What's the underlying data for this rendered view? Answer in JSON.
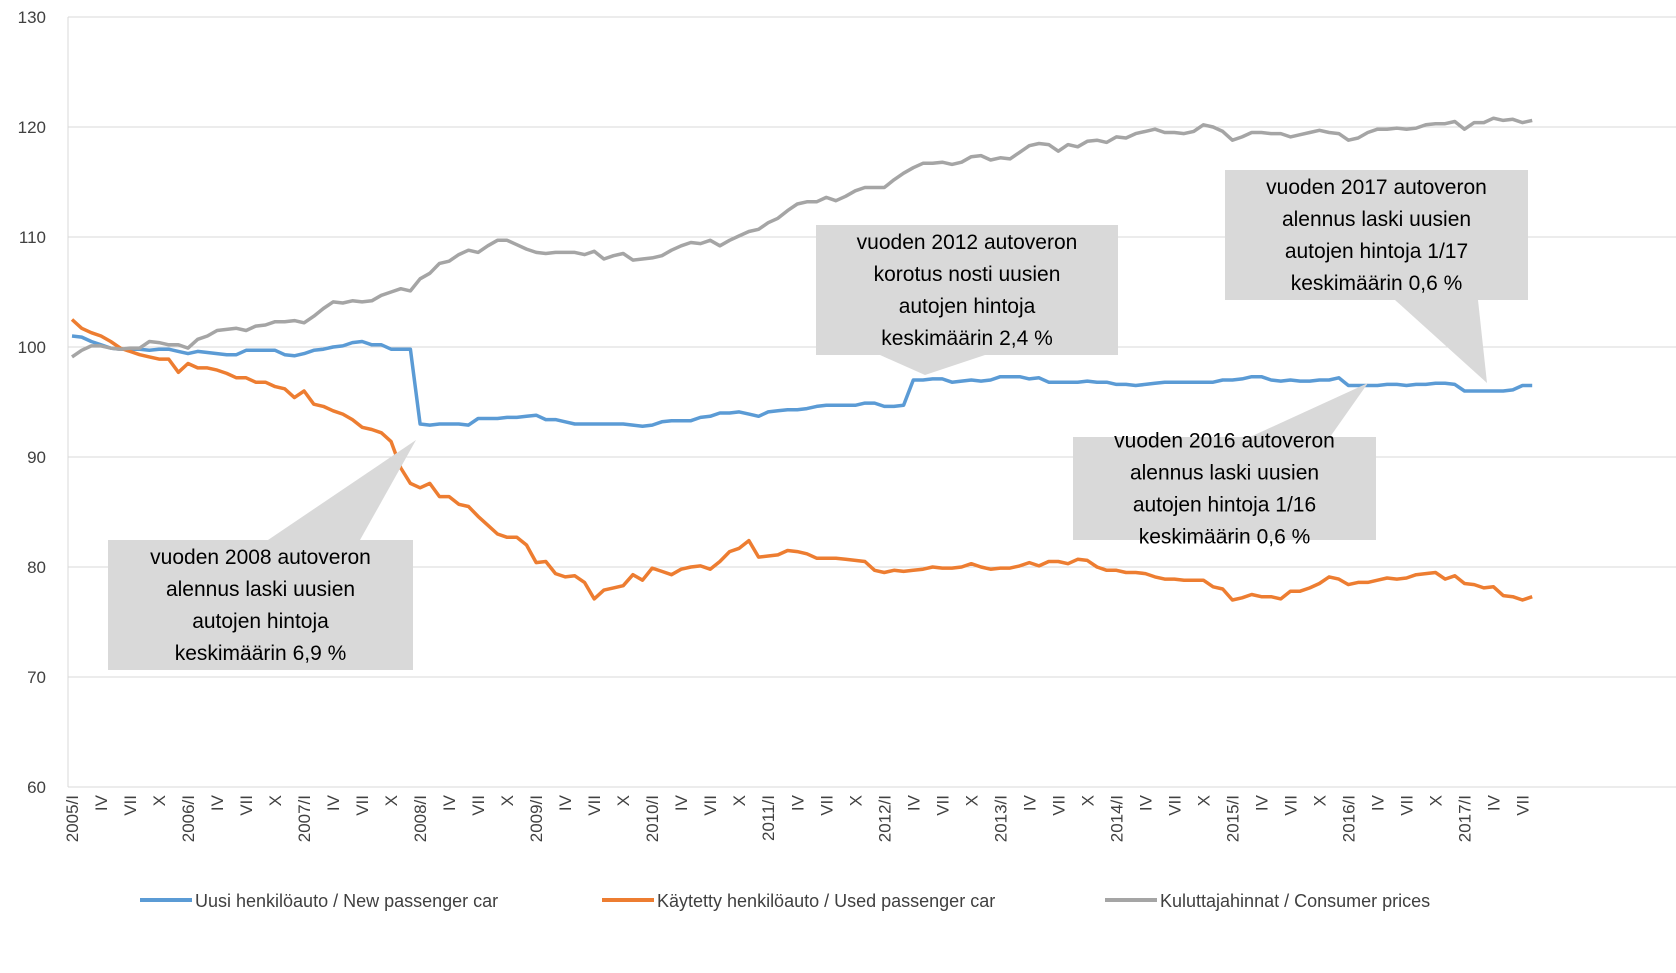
{
  "chart_data": {
    "type": "line",
    "categories": [
      "2005/I",
      null,
      null,
      "IV",
      null,
      null,
      "VII",
      null,
      null,
      "X",
      null,
      null,
      "2006/I",
      null,
      null,
      "IV",
      null,
      null,
      "VII",
      null,
      null,
      "X",
      null,
      null,
      "2007/I",
      null,
      null,
      "IV",
      null,
      null,
      "VII",
      null,
      null,
      "X",
      null,
      null,
      "2008/I",
      null,
      null,
      "IV",
      null,
      null,
      "VII",
      null,
      null,
      "X",
      null,
      null,
      "2009/I",
      null,
      null,
      "IV",
      null,
      null,
      "VII",
      null,
      null,
      "X",
      null,
      null,
      "2010/I",
      null,
      null,
      "IV",
      null,
      null,
      "VII",
      null,
      null,
      "X",
      null,
      null,
      "2011/I",
      null,
      null,
      "IV",
      null,
      null,
      "VII",
      null,
      null,
      "X",
      null,
      null,
      "2012/I",
      null,
      null,
      "IV",
      null,
      null,
      "VII",
      null,
      null,
      "X",
      null,
      null,
      "2013/I",
      null,
      null,
      "IV",
      null,
      null,
      "VII",
      null,
      null,
      "X",
      null,
      null,
      "2014/I",
      null,
      null,
      "IV",
      null,
      null,
      "VII",
      null,
      null,
      "X",
      null,
      null,
      "2015/I",
      null,
      null,
      "IV",
      null,
      null,
      "VII",
      null,
      null,
      "X",
      null,
      null,
      "2016/I",
      null,
      null,
      "IV",
      null,
      null,
      "VII",
      null,
      null,
      "X",
      null,
      null,
      "2017/I",
      null,
      null,
      "IV",
      null,
      null,
      "VII",
      null
    ],
    "series": [
      {
        "name": "Uusi henkilöauto / New passenger car",
        "color": "#5b9bd5",
        "values": [
          101.0,
          100.9,
          100.5,
          100.2,
          99.9,
          99.8,
          99.8,
          99.8,
          99.7,
          99.8,
          99.8,
          99.6,
          99.4,
          99.6,
          99.5,
          99.4,
          99.3,
          99.3,
          99.7,
          99.7,
          99.7,
          99.7,
          99.3,
          99.2,
          99.4,
          99.7,
          99.8,
          100.0,
          100.1,
          100.4,
          100.5,
          100.2,
          100.2,
          99.8,
          99.8,
          99.8,
          93.0,
          92.9,
          93.0,
          93.0,
          93.0,
          92.9,
          93.5,
          93.5,
          93.5,
          93.6,
          93.6,
          93.7,
          93.8,
          93.4,
          93.4,
          93.2,
          93.0,
          93.0,
          93.0,
          93.0,
          93.0,
          93.0,
          92.9,
          92.8,
          92.9,
          93.2,
          93.3,
          93.3,
          93.3,
          93.6,
          93.7,
          94.0,
          94.0,
          94.1,
          93.9,
          93.7,
          94.1,
          94.2,
          94.3,
          94.3,
          94.4,
          94.6,
          94.7,
          94.7,
          94.7,
          94.7,
          94.9,
          94.9,
          94.6,
          94.6,
          94.7,
          97.0,
          97.0,
          97.1,
          97.1,
          96.8,
          96.9,
          97.0,
          96.9,
          97.0,
          97.3,
          97.3,
          97.3,
          97.1,
          97.2,
          96.8,
          96.8,
          96.8,
          96.8,
          96.9,
          96.8,
          96.8,
          96.6,
          96.6,
          96.5,
          96.6,
          96.7,
          96.8,
          96.8,
          96.8,
          96.8,
          96.8,
          96.8,
          97.0,
          97.0,
          97.1,
          97.3,
          97.3,
          97.0,
          96.9,
          97.0,
          96.9,
          96.9,
          97.0,
          97.0,
          97.2,
          96.5,
          96.5,
          96.5,
          96.5,
          96.6,
          96.6,
          96.5,
          96.6,
          96.6,
          96.7,
          96.7,
          96.6,
          96.0,
          96.0,
          96.0,
          96.0,
          96.0,
          96.1,
          96.5,
          96.5
        ]
      },
      {
        "name": "Käytetty henkilöauto / Used passenger car",
        "color": "#ed7d31",
        "values": [
          102.5,
          101.7,
          101.3,
          101.0,
          100.5,
          99.9,
          99.6,
          99.3,
          99.1,
          98.9,
          98.9,
          97.7,
          98.5,
          98.1,
          98.1,
          97.9,
          97.6,
          97.2,
          97.2,
          96.8,
          96.8,
          96.4,
          96.2,
          95.4,
          96.0,
          94.8,
          94.6,
          94.2,
          93.9,
          93.4,
          92.7,
          92.5,
          92.2,
          91.4,
          89.0,
          87.6,
          87.2,
          87.6,
          86.4,
          86.4,
          85.7,
          85.5,
          84.6,
          83.8,
          83.0,
          82.7,
          82.7,
          82.0,
          80.4,
          80.5,
          79.4,
          79.1,
          79.2,
          78.6,
          77.1,
          77.9,
          78.1,
          78.3,
          79.3,
          78.8,
          79.9,
          79.6,
          79.3,
          79.8,
          80.0,
          80.1,
          79.8,
          80.5,
          81.4,
          81.7,
          82.4,
          80.9,
          81.0,
          81.1,
          81.5,
          81.4,
          81.2,
          80.8,
          80.8,
          80.8,
          80.7,
          80.6,
          80.5,
          79.7,
          79.5,
          79.7,
          79.6,
          79.7,
          79.8,
          80.0,
          79.9,
          79.9,
          80.0,
          80.3,
          80.0,
          79.8,
          79.9,
          79.9,
          80.1,
          80.4,
          80.1,
          80.5,
          80.5,
          80.3,
          80.7,
          80.6,
          80.0,
          79.7,
          79.7,
          79.5,
          79.5,
          79.4,
          79.1,
          78.9,
          78.9,
          78.8,
          78.8,
          78.8,
          78.2,
          78.0,
          77.0,
          77.2,
          77.5,
          77.3,
          77.3,
          77.1,
          77.8,
          77.8,
          78.1,
          78.5,
          79.1,
          78.9,
          78.4,
          78.6,
          78.6,
          78.8,
          79.0,
          78.9,
          79.0,
          79.3,
          79.4,
          79.5,
          78.9,
          79.2,
          78.5,
          78.4,
          78.1,
          78.2,
          77.4,
          77.3,
          77.0,
          77.3
        ]
      },
      {
        "name": "Kuluttajahinnat / Consumer prices",
        "color": "#a5a5a5",
        "values": [
          99.1,
          99.7,
          100.1,
          100.1,
          99.9,
          99.8,
          99.9,
          99.9,
          100.5,
          100.4,
          100.2,
          100.2,
          99.9,
          100.7,
          101.0,
          101.5,
          101.6,
          101.7,
          101.5,
          101.9,
          102.0,
          102.3,
          102.3,
          102.4,
          102.2,
          102.8,
          103.5,
          104.1,
          104.0,
          104.2,
          104.1,
          104.2,
          104.7,
          105.0,
          105.3,
          105.1,
          106.2,
          106.7,
          107.6,
          107.8,
          108.4,
          108.8,
          108.6,
          109.2,
          109.7,
          109.7,
          109.3,
          108.9,
          108.6,
          108.5,
          108.6,
          108.6,
          108.6,
          108.4,
          108.7,
          108.0,
          108.3,
          108.5,
          107.9,
          108.0,
          108.1,
          108.3,
          108.8,
          109.2,
          109.5,
          109.4,
          109.7,
          109.2,
          109.7,
          110.1,
          110.5,
          110.7,
          111.3,
          111.7,
          112.4,
          113.0,
          113.2,
          113.2,
          113.6,
          113.3,
          113.7,
          114.2,
          114.5,
          114.5,
          114.5,
          115.2,
          115.8,
          116.3,
          116.7,
          116.7,
          116.8,
          116.6,
          116.8,
          117.3,
          117.4,
          117.0,
          117.2,
          117.1,
          117.7,
          118.3,
          118.5,
          118.4,
          117.8,
          118.4,
          118.2,
          118.7,
          118.8,
          118.6,
          119.1,
          119.0,
          119.4,
          119.6,
          119.8,
          119.5,
          119.5,
          119.4,
          119.6,
          120.2,
          120.0,
          119.6,
          118.8,
          119.1,
          119.5,
          119.5,
          119.4,
          119.4,
          119.1,
          119.3,
          119.5,
          119.7,
          119.5,
          119.4,
          118.8,
          119.0,
          119.5,
          119.8,
          119.8,
          119.9,
          119.8,
          119.9,
          120.2,
          120.3,
          120.3,
          120.5,
          119.8,
          120.4,
          120.4,
          120.8,
          120.6,
          120.7,
          120.4,
          120.6
        ]
      }
    ],
    "ylim": [
      60,
      130
    ],
    "yticks": [
      60,
      70,
      80,
      90,
      100,
      110,
      120,
      130
    ],
    "grid": true,
    "annotations": [
      {
        "lines": [
          "vuoden 2008 autoveron",
          "alennus laski uusien",
          "autojen hintoja",
          "keskimäärin 6,9 %"
        ]
      },
      {
        "lines": [
          "vuoden 2012 autoveron",
          "korotus nosti uusien",
          "autojen hintoja",
          "keskimäärin 2,4 %"
        ]
      },
      {
        "lines": [
          "vuoden 2016 autoveron",
          "alennus laski uusien",
          "autojen hintoja 1/16",
          "keskimäärin 0,6 %"
        ]
      },
      {
        "lines": [
          "vuoden 2017 autoveron",
          "alennus laski uusien",
          "autojen hintoja 1/17",
          "keskimäärin 0,6 %"
        ]
      }
    ]
  }
}
